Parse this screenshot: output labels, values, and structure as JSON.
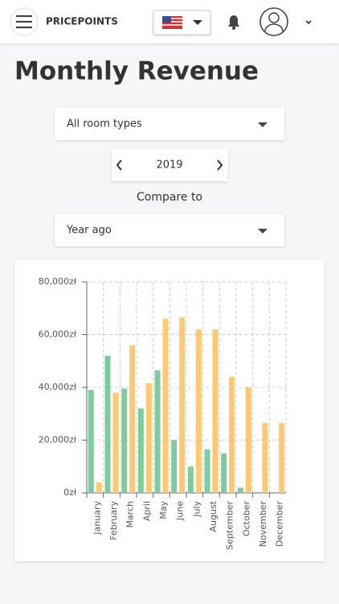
{
  "header": {
    "brand": "PRICEPOINTS"
  },
  "title": "Monthly Revenue",
  "filters": {
    "room_type": "All room types",
    "year": "2019",
    "compare_label": "Compare to",
    "compare": "Year ago"
  },
  "chart_data": {
    "type": "bar",
    "categories": [
      "January",
      "February",
      "March",
      "April",
      "May",
      "June",
      "July",
      "August",
      "September",
      "October",
      "November",
      "December"
    ],
    "series": [
      {
        "color": "#7fcb9f",
        "values": [
          39000,
          52000,
          39500,
          32000,
          46500,
          20000,
          10000,
          16500,
          15000,
          2000,
          0,
          0
        ]
      },
      {
        "color": "#fdc872",
        "values": [
          4000,
          38000,
          56000,
          41500,
          66000,
          66500,
          62000,
          62000,
          44000,
          40000,
          26500,
          26500
        ]
      }
    ],
    "ylim": [
      0,
      80000
    ],
    "yticks": [
      {
        "value": 0,
        "label": "0zł"
      },
      {
        "value": 20000,
        "label": "20,000zł"
      },
      {
        "value": 40000,
        "label": "40,000zł"
      },
      {
        "value": 60000,
        "label": "60,000zł"
      },
      {
        "value": 80000,
        "label": "80,000zł"
      }
    ],
    "grid": true
  }
}
